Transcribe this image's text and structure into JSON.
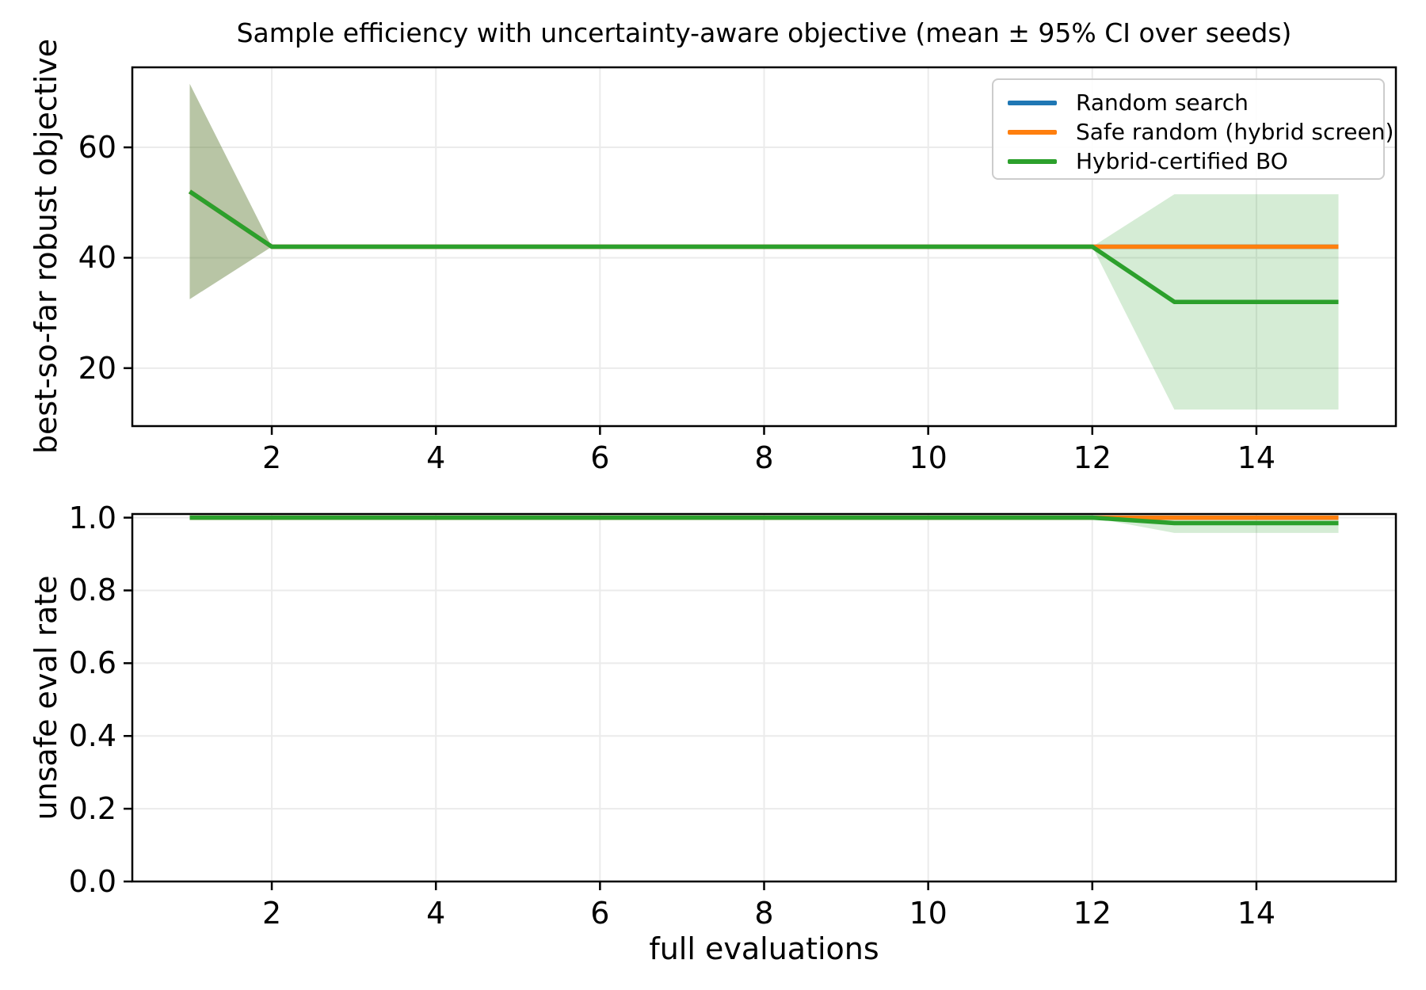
{
  "figure_title": "Sample efficiency with uncertainty-aware objective (mean ± 95% CI over seeds)",
  "legend": {
    "entries": [
      {
        "label": "Random search",
        "color": "#1f77b4"
      },
      {
        "label": "Safe random (hybrid screen)",
        "color": "#ff7f0e"
      },
      {
        "label": "Hybrid-certified BO",
        "color": "#2ca02c"
      }
    ]
  },
  "colors": {
    "blue": "#1f77b4",
    "orange": "#ff7f0e",
    "green": "#2ca02c",
    "grid": "#ebebeb",
    "spine": "#000000"
  },
  "chart_data": [
    {
      "type": "line",
      "title": "Sample efficiency with uncertainty-aware objective (mean ± 95% CI over seeds)",
      "xlabel": "",
      "ylabel": "best-so-far robust objective",
      "x": [
        1,
        2,
        3,
        4,
        5,
        6,
        7,
        8,
        9,
        10,
        11,
        12,
        13,
        14,
        15
      ],
      "xticks": [
        2,
        4,
        6,
        8,
        10,
        12,
        14
      ],
      "xtick_labels": [
        "2",
        "4",
        "6",
        "8",
        "10",
        "12",
        "14"
      ],
      "yticks": [
        20,
        40,
        60
      ],
      "ytick_labels": [
        "20",
        "40",
        "60"
      ],
      "xlim": [
        0.3,
        15.7
      ],
      "ylim": [
        9.5,
        74.5
      ],
      "grid": true,
      "legend_position": "upper right",
      "series": [
        {
          "name": "Random search",
          "color": "#1f77b4",
          "values": [
            52,
            42,
            42,
            42,
            42,
            42,
            42,
            42,
            42,
            42,
            42,
            42,
            42,
            42,
            42
          ],
          "ci_lower": [
            32.5,
            42,
            42,
            42,
            42,
            42,
            42,
            42,
            42,
            42,
            42,
            42,
            42,
            42,
            42
          ],
          "ci_upper": [
            71.5,
            42,
            42,
            42,
            42,
            42,
            42,
            42,
            42,
            42,
            42,
            42,
            42,
            42,
            42
          ],
          "fill_alpha": 0.2
        },
        {
          "name": "Safe random (hybrid screen)",
          "color": "#ff7f0e",
          "values": [
            52,
            42,
            42,
            42,
            42,
            42,
            42,
            42,
            42,
            42,
            42,
            42,
            42,
            42,
            42
          ],
          "ci_lower": [
            32.5,
            42,
            42,
            42,
            42,
            42,
            42,
            42,
            42,
            42,
            42,
            42,
            42,
            42,
            42
          ],
          "ci_upper": [
            71.5,
            42,
            42,
            42,
            42,
            42,
            42,
            42,
            42,
            42,
            42,
            42,
            42,
            42,
            42
          ],
          "fill_alpha": 0.2
        },
        {
          "name": "Hybrid-certified BO",
          "color": "#2ca02c",
          "values": [
            52,
            42,
            42,
            42,
            42,
            42,
            42,
            42,
            42,
            42,
            42,
            42,
            32,
            32,
            32
          ],
          "ci_lower": [
            32.5,
            42,
            42,
            42,
            42,
            42,
            42,
            42,
            42,
            42,
            42,
            42,
            12.5,
            12.5,
            12.5
          ],
          "ci_upper": [
            71.5,
            42,
            42,
            42,
            42,
            42,
            42,
            42,
            42,
            42,
            42,
            42,
            51.5,
            51.5,
            51.5
          ],
          "fill_alpha": 0.2
        }
      ]
    },
    {
      "type": "line",
      "title": "",
      "xlabel": "full evaluations",
      "ylabel": "unsafe eval rate",
      "x": [
        1,
        2,
        3,
        4,
        5,
        6,
        7,
        8,
        9,
        10,
        11,
        12,
        13,
        14,
        15
      ],
      "xticks": [
        2,
        4,
        6,
        8,
        10,
        12,
        14
      ],
      "xtick_labels": [
        "2",
        "4",
        "6",
        "8",
        "10",
        "12",
        "14"
      ],
      "yticks": [
        0.0,
        0.2,
        0.4,
        0.6,
        0.8,
        1.0
      ],
      "ytick_labels": [
        "0.0",
        "0.2",
        "0.4",
        "0.6",
        "0.8",
        "1.0"
      ],
      "xlim": [
        0.3,
        15.7
      ],
      "ylim": [
        0,
        1.01
      ],
      "grid": true,
      "series": [
        {
          "name": "Random search",
          "color": "#1f77b4",
          "values": [
            1.0,
            1.0,
            1.0,
            1.0,
            1.0,
            1.0,
            1.0,
            1.0,
            1.0,
            1.0,
            1.0,
            1.0,
            1.0,
            1.0,
            1.0
          ],
          "ci_lower": [
            1.0,
            1.0,
            1.0,
            1.0,
            1.0,
            1.0,
            1.0,
            1.0,
            1.0,
            1.0,
            1.0,
            1.0,
            1.0,
            1.0,
            1.0
          ],
          "ci_upper": [
            1.0,
            1.0,
            1.0,
            1.0,
            1.0,
            1.0,
            1.0,
            1.0,
            1.0,
            1.0,
            1.0,
            1.0,
            1.0,
            1.0,
            1.0
          ],
          "fill_alpha": 0.2
        },
        {
          "name": "Safe random (hybrid screen)",
          "color": "#ff7f0e",
          "values": [
            1.0,
            1.0,
            1.0,
            1.0,
            1.0,
            1.0,
            1.0,
            1.0,
            1.0,
            1.0,
            1.0,
            1.0,
            1.0,
            1.0,
            1.0
          ],
          "ci_lower": [
            1.0,
            1.0,
            1.0,
            1.0,
            1.0,
            1.0,
            1.0,
            1.0,
            1.0,
            1.0,
            1.0,
            1.0,
            1.0,
            1.0,
            1.0
          ],
          "ci_upper": [
            1.0,
            1.0,
            1.0,
            1.0,
            1.0,
            1.0,
            1.0,
            1.0,
            1.0,
            1.0,
            1.0,
            1.0,
            1.0,
            1.0,
            1.0
          ],
          "fill_alpha": 0.2
        },
        {
          "name": "Hybrid-certified BO",
          "color": "#2ca02c",
          "values": [
            1.0,
            1.0,
            1.0,
            1.0,
            1.0,
            1.0,
            1.0,
            1.0,
            1.0,
            1.0,
            1.0,
            1.0,
            0.985,
            0.985,
            0.985
          ],
          "ci_lower": [
            1.0,
            1.0,
            1.0,
            1.0,
            1.0,
            1.0,
            1.0,
            1.0,
            1.0,
            1.0,
            1.0,
            1.0,
            0.958,
            0.958,
            0.958
          ],
          "ci_upper": [
            1.0,
            1.0,
            1.0,
            1.0,
            1.0,
            1.0,
            1.0,
            1.0,
            1.0,
            1.0,
            1.0,
            1.0,
            1.0,
            1.0,
            1.0
          ],
          "fill_alpha": 0.2
        }
      ]
    }
  ]
}
